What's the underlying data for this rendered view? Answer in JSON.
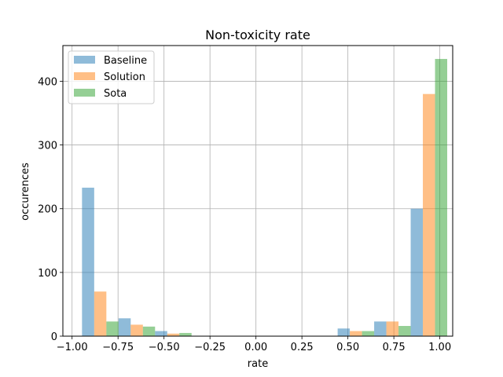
{
  "chart_data": {
    "type": "bar",
    "title": "Non-toxicity rate",
    "xlabel": "rate",
    "ylabel": "occurences",
    "xlim": [
      -1.05,
      1.07
    ],
    "ylim": [
      0,
      456
    ],
    "x_ticks": [
      -1.0,
      -0.75,
      -0.5,
      -0.25,
      0.0,
      0.25,
      0.5,
      0.75,
      1.0
    ],
    "x_tick_labels": [
      "−1.00",
      "−0.75",
      "−0.50",
      "−0.25",
      "0.00",
      "0.25",
      "0.50",
      "0.75",
      "1.00"
    ],
    "y_ticks": [
      0,
      100,
      200,
      300,
      400
    ],
    "y_tick_labels": [
      "0",
      "100",
      "200",
      "300",
      "400"
    ],
    "grid": true,
    "legend_position": "top-left",
    "bins": [
      {
        "start": -0.9459,
        "end": -0.7473
      },
      {
        "start": -0.7473,
        "end": -0.5487
      },
      {
        "start": -0.5487,
        "end": -0.3501
      },
      {
        "start": 0.4443,
        "end": 0.6429
      },
      {
        "start": 0.6429,
        "end": 0.8415
      },
      {
        "start": 0.8415,
        "end": 1.0401
      }
    ],
    "series": [
      {
        "name": "Baseline",
        "color": "#1f77b4",
        "values": [
          233,
          28,
          8,
          12,
          23,
          200
        ]
      },
      {
        "name": "Solution",
        "color": "#ff7f0e",
        "values": [
          70,
          18,
          4,
          8,
          23,
          380
        ]
      },
      {
        "name": "Sota",
        "color": "#2ca02c",
        "values": [
          23,
          15,
          5,
          8,
          16,
          435
        ]
      }
    ]
  }
}
